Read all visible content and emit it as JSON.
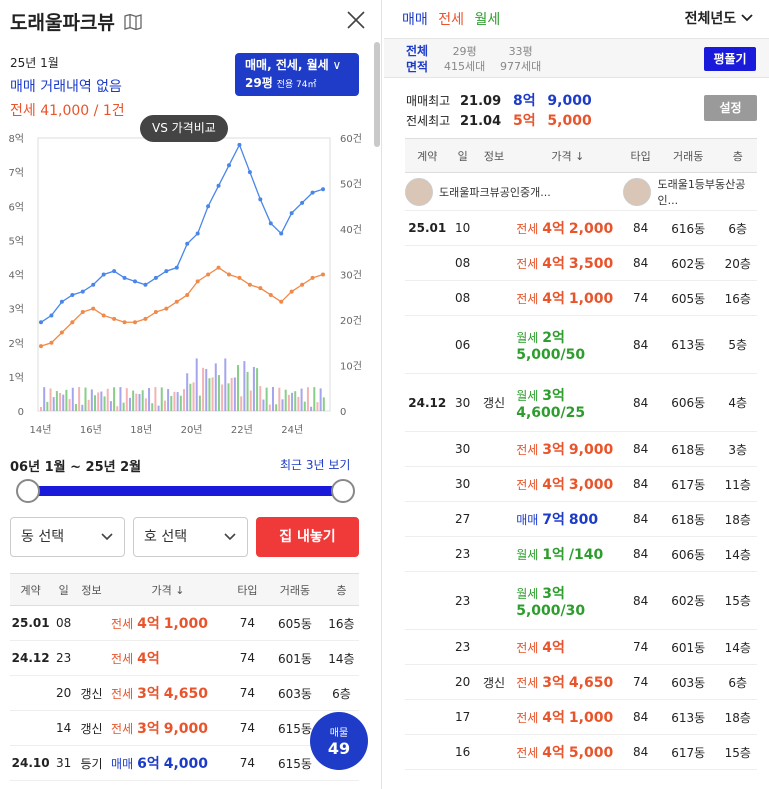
{
  "left": {
    "title": "도래울파크뷰",
    "month": "25년 1월",
    "line1": "매매 거래내역 없음",
    "line2": "전세 41,000 / 1건",
    "type_pill": {
      "types": "매매, 전세, 월세",
      "pyeong": "29평",
      "area": "전용 74㎡"
    },
    "vs_label": "VS 가격비교",
    "range_text": "06년 1월 ~ 25년 2월",
    "recent_link": "최근 3년 보기",
    "dong_select": "동 선택",
    "ho_select": "호 선택",
    "list_button": "집 내놓기",
    "listing_badge": {
      "label": "매물",
      "count": "49"
    },
    "table_headers": [
      "계약",
      "일",
      "정보",
      "가격 ↓",
      "타입",
      "거래동",
      "층"
    ],
    "rows": [
      {
        "date": "25.01",
        "day": "08",
        "info": "",
        "type": "전세",
        "price_a": "4억",
        "price_b": "1,000",
        "kind": "74",
        "dong": "605동",
        "floor": "16층"
      },
      {
        "date": "24.12",
        "day": "23",
        "info": "",
        "type": "전세",
        "price_a": "4억",
        "price_b": "",
        "kind": "74",
        "dong": "601동",
        "floor": "14층"
      },
      {
        "date": "",
        "day": "20",
        "info": "갱신",
        "type": "전세",
        "price_a": "3억",
        "price_b": "4,650",
        "kind": "74",
        "dong": "603동",
        "floor": "6층"
      },
      {
        "date": "",
        "day": "14",
        "info": "갱신",
        "type": "전세",
        "price_a": "3억",
        "price_b": "9,000",
        "kind": "74",
        "dong": "615동",
        "floor": ""
      },
      {
        "date": "24.10",
        "day": "31",
        "info": "등기",
        "type": "매매",
        "price_a": "6억",
        "price_b": "4,000",
        "kind": "74",
        "dong": "615동",
        "floor": ""
      }
    ]
  },
  "chart_data": {
    "type": "line",
    "x_ticks": [
      "14년",
      "16년",
      "18년",
      "20년",
      "22년",
      "24년"
    ],
    "y_left_ticks": [
      "0",
      "1억",
      "2억",
      "3억",
      "4억",
      "5억",
      "6억",
      "7억",
      "8억"
    ],
    "y_right_ticks": [
      "0",
      "10건",
      "20건",
      "30건",
      "40건",
      "50건",
      "60건"
    ],
    "ylim": [
      0,
      8
    ],
    "y2lim": [
      0,
      60
    ],
    "series": [
      {
        "kind": "매매",
        "color": "#4a86e8",
        "values": [
          2.6,
          2.8,
          3.2,
          3.4,
          3.5,
          3.7,
          4.0,
          4.1,
          3.9,
          3.8,
          3.7,
          3.9,
          4.1,
          4.2,
          4.9,
          5.2,
          6.0,
          6.6,
          7.2,
          7.8,
          7.0,
          6.2,
          5.5,
          5.2,
          5.8,
          6.1,
          6.4,
          6.5
        ]
      },
      {
        "kind": "전세",
        "color": "#f08a4b",
        "values": [
          1.9,
          2.0,
          2.3,
          2.6,
          2.9,
          3.0,
          2.8,
          2.7,
          2.6,
          2.6,
          2.7,
          2.9,
          3.0,
          3.2,
          3.4,
          3.8,
          4.0,
          4.2,
          4.0,
          3.9,
          3.7,
          3.6,
          3.4,
          3.2,
          3.5,
          3.7,
          3.9,
          4.0
        ]
      }
    ]
  },
  "right": {
    "tabs": [
      "매매",
      "전세",
      "월세"
    ],
    "tab_colors": [
      "#1c3bc8",
      "#e8542b",
      "#2d9d2d"
    ],
    "year_dropdown": "전체년도",
    "area_label_1": "전체",
    "area_label_2": "면적",
    "area_options": [
      {
        "pyeong": "29평",
        "units": "415세대"
      },
      {
        "pyeong": "33평",
        "units": "977세대"
      }
    ],
    "pyeong_button": "평풀기",
    "sale_high": {
      "label": "매매최고",
      "date": "21.09",
      "price_a": "8억",
      "price_b": "9,000"
    },
    "jeonse_high": {
      "label": "전세최고",
      "date": "21.04",
      "price_a": "5억",
      "price_b": "5,000"
    },
    "settings_button": "설정",
    "table_headers": [
      "계약",
      "일",
      "정보",
      "가격 ↓",
      "타입",
      "거래동",
      "층"
    ],
    "agents": [
      "도래울파크뷰공인중개...",
      "도래울1등부동산공인..."
    ],
    "rows": [
      {
        "date": "25.01",
        "day": "10",
        "info": "",
        "type": "전세",
        "price_a": "4억",
        "price_b": "2,000",
        "kind": "84",
        "dong": "616동",
        "floor": "6층"
      },
      {
        "date": "",
        "day": "08",
        "info": "",
        "type": "전세",
        "price_a": "4억",
        "price_b": "3,500",
        "kind": "84",
        "dong": "602동",
        "floor": "20층"
      },
      {
        "date": "",
        "day": "08",
        "info": "",
        "type": "전세",
        "price_a": "4억",
        "price_b": "1,000",
        "kind": "74",
        "dong": "605동",
        "floor": "16층"
      },
      {
        "date": "",
        "day": "06",
        "info": "",
        "type": "월세",
        "price_a": "2억",
        "price_b": "5,000/50",
        "kind": "84",
        "dong": "613동",
        "floor": "5층"
      },
      {
        "date": "24.12",
        "day": "30",
        "info": "갱신",
        "type": "월세",
        "price_a": "3억",
        "price_b": "4,600/25",
        "kind": "84",
        "dong": "606동",
        "floor": "4층"
      },
      {
        "date": "",
        "day": "30",
        "info": "",
        "type": "전세",
        "price_a": "3억",
        "price_b": "9,000",
        "kind": "84",
        "dong": "618동",
        "floor": "3층"
      },
      {
        "date": "",
        "day": "30",
        "info": "",
        "type": "전세",
        "price_a": "4억",
        "price_b": "3,000",
        "kind": "84",
        "dong": "617동",
        "floor": "11층"
      },
      {
        "date": "",
        "day": "27",
        "info": "",
        "type": "매매",
        "price_a": "7억",
        "price_b": "800",
        "kind": "84",
        "dong": "618동",
        "floor": "18층"
      },
      {
        "date": "",
        "day": "23",
        "info": "",
        "type": "월세",
        "price_a": "1억",
        "price_b": "/140",
        "kind": "84",
        "dong": "606동",
        "floor": "14층"
      },
      {
        "date": "",
        "day": "23",
        "info": "",
        "type": "월세",
        "price_a": "3억",
        "price_b": "5,000/30",
        "kind": "84",
        "dong": "602동",
        "floor": "15층"
      },
      {
        "date": "",
        "day": "23",
        "info": "",
        "type": "전세",
        "price_a": "4억",
        "price_b": "",
        "kind": "74",
        "dong": "601동",
        "floor": "14층"
      },
      {
        "date": "",
        "day": "20",
        "info": "갱신",
        "type": "전세",
        "price_a": "3억",
        "price_b": "4,650",
        "kind": "74",
        "dong": "603동",
        "floor": "6층"
      },
      {
        "date": "",
        "day": "17",
        "info": "",
        "type": "전세",
        "price_a": "4억",
        "price_b": "1,000",
        "kind": "84",
        "dong": "613동",
        "floor": "18층"
      },
      {
        "date": "",
        "day": "16",
        "info": "",
        "type": "전세",
        "price_a": "4억",
        "price_b": "5,000",
        "kind": "84",
        "dong": "617동",
        "floor": "15층"
      }
    ]
  }
}
